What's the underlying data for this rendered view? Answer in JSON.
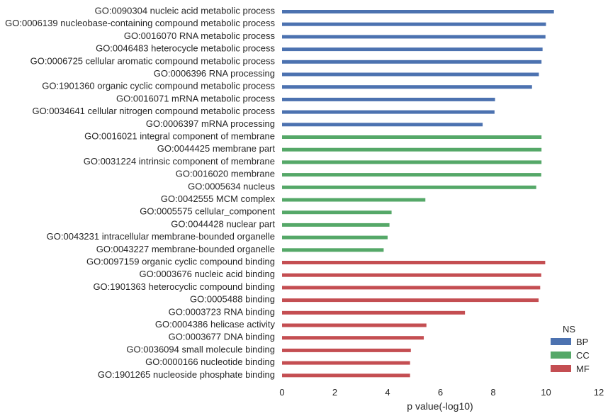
{
  "chart_data": {
    "type": "bar",
    "orientation": "horizontal",
    "title": "",
    "xlabel": "p value(-log10)",
    "ylabel": "",
    "xlim": [
      0,
      12
    ],
    "xticks": [
      "0",
      "2",
      "4",
      "6",
      "8",
      "10",
      "12"
    ],
    "grid": false,
    "legend": {
      "title": "NS",
      "position": "bottom-right",
      "entries": [
        {
          "name": "BP",
          "color": "#4C72B0"
        },
        {
          "name": "CC",
          "color": "#55A868"
        },
        {
          "name": "MF",
          "color": "#C44E52"
        }
      ]
    },
    "categories": [
      "GO:0090304 nucleic acid metabolic process",
      "GO:0006139 nucleobase-containing compound metabolic process",
      "GO:0016070 RNA metabolic process",
      "GO:0046483 heterocycle metabolic process",
      "GO:0006725 cellular aromatic compound metabolic process",
      "GO:0006396 RNA processing",
      "GO:1901360 organic cyclic compound metabolic process",
      "GO:0016071 mRNA metabolic process",
      "GO:0034641 cellular nitrogen compound metabolic process",
      "GO:0006397 mRNA processing",
      "GO:0016021 integral component of membrane",
      "GO:0044425 membrane part",
      "GO:0031224 intrinsic component of membrane",
      "GO:0016020 membrane",
      "GO:0005634 nucleus",
      "GO:0042555 MCM complex",
      "GO:0005575 cellular_component",
      "GO:0044428 nuclear part",
      "GO:0043231 intracellular membrane-bounded organelle",
      "GO:0043227 membrane-bounded organelle",
      "GO:0097159 organic cyclic compound binding",
      "GO:0003676 nucleic acid binding",
      "GO:1901363 heterocyclic compound binding",
      "GO:0005488 binding",
      "GO:0003723 RNA binding",
      "GO:0004386 helicase activity",
      "GO:0003677 DNA binding",
      "GO:0036094 small molecule binding",
      "GO:0000166 nucleotide binding",
      "GO:1901265 nucleoside phosphate binding"
    ],
    "groups": [
      "BP",
      "BP",
      "BP",
      "BP",
      "BP",
      "BP",
      "BP",
      "BP",
      "BP",
      "BP",
      "CC",
      "CC",
      "CC",
      "CC",
      "CC",
      "CC",
      "CC",
      "CC",
      "CC",
      "CC",
      "MF",
      "MF",
      "MF",
      "MF",
      "MF",
      "MF",
      "MF",
      "MF",
      "MF",
      "MF"
    ],
    "values": [
      10.3,
      10.0,
      9.98,
      9.87,
      9.83,
      9.73,
      9.47,
      8.07,
      8.05,
      7.6,
      9.83,
      9.83,
      9.83,
      9.82,
      9.63,
      5.43,
      4.15,
      4.07,
      4.0,
      3.85,
      9.97,
      9.82,
      9.78,
      9.72,
      6.93,
      5.47,
      5.37,
      4.88,
      4.85,
      4.85
    ]
  }
}
